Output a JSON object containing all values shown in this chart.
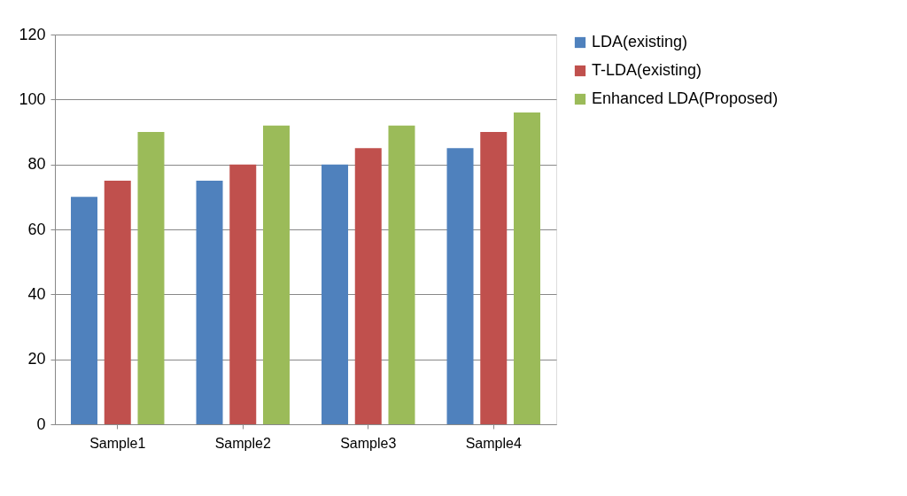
{
  "chart_data": {
    "type": "bar",
    "categories": [
      "Sample1",
      "Sample2",
      "Sample3",
      "Sample4"
    ],
    "series": [
      {
        "name": "LDA(existing)",
        "color": "#4f81bd",
        "values": [
          70,
          75,
          80,
          85
        ]
      },
      {
        "name": "T-LDA(existing)",
        "color": "#c0504d",
        "values": [
          75,
          80,
          85,
          90
        ]
      },
      {
        "name": "Enhanced LDA(Proposed)",
        "color": "#9bbb59",
        "values": [
          90,
          92,
          92,
          96
        ]
      }
    ],
    "ylim": [
      0,
      120
    ],
    "yticks": [
      0,
      20,
      40,
      60,
      80,
      100,
      120
    ],
    "grid": "y",
    "legend": "right"
  }
}
